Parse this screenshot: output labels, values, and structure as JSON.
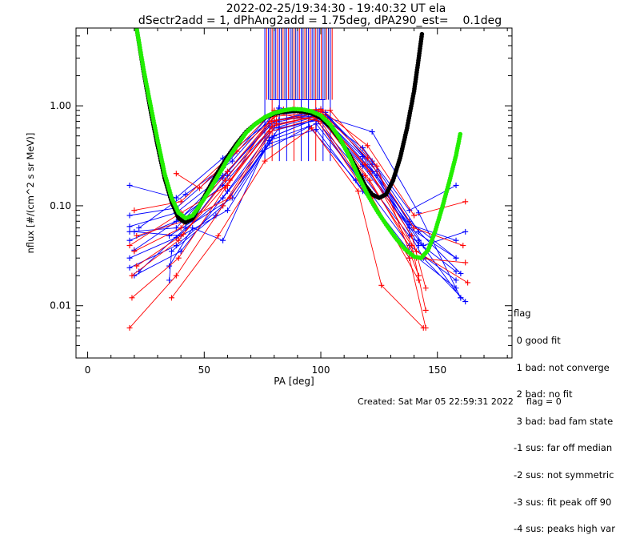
{
  "chart_data": {
    "type": "scatter",
    "title": "2022-02-25/19:34:30 - 19:40:32 UT ela",
    "subtitle": "dSectr2add = 1, dPhAng2add = 1.75deg, dPA290_est=    0.1deg",
    "xlabel": "PA [deg]",
    "ylabel": "nflux [#/(cm^2 s sr MeV)]",
    "xlim": [
      -5,
      182
    ],
    "ylim": [
      0.003,
      6.0
    ],
    "yscale": "log",
    "xticks": [
      0,
      50,
      100,
      150
    ],
    "xtick_labels": [
      "0",
      "50",
      "100",
      "150"
    ],
    "yticks": [
      0.01,
      0.1,
      1.0
    ],
    "ytick_labels": [
      "0.01",
      "0.10",
      "1.00"
    ],
    "series": [
      {
        "color": "#0000ff",
        "style": "lines-plus",
        "lines": [
          [
            [
              18,
              0.062
            ],
            [
              38,
              0.085
            ],
            [
              58,
              0.2
            ],
            [
              78,
              0.62
            ],
            [
              98,
              0.8
            ],
            [
              118,
              0.25
            ],
            [
              138,
              0.06
            ],
            [
              158,
              0.03
            ]
          ],
          [
            [
              18,
              0.045
            ],
            [
              38,
              0.07
            ],
            [
              58,
              0.16
            ],
            [
              78,
              0.55
            ],
            [
              98,
              0.72
            ],
            [
              118,
              0.2
            ],
            [
              138,
              0.05
            ],
            [
              158,
              0.022
            ]
          ],
          [
            [
              18,
              0.03
            ],
            [
              38,
              0.048
            ],
            [
              58,
              0.12
            ],
            [
              78,
              0.45
            ],
            [
              98,
              0.66
            ],
            [
              118,
              0.17
            ],
            [
              138,
              0.04
            ],
            [
              158,
              0.018
            ]
          ],
          [
            [
              18,
              0.024
            ],
            [
              38,
              0.04
            ],
            [
              58,
              0.1
            ],
            [
              78,
              0.42
            ],
            [
              98,
              0.58
            ],
            [
              118,
              0.14
            ],
            [
              138,
              0.035
            ],
            [
              158,
              0.015
            ]
          ],
          [
            [
              18,
              0.16
            ],
            [
              38,
              0.12
            ],
            [
              58,
              0.3
            ],
            [
              78,
              0.7
            ],
            [
              98,
              0.86
            ],
            [
              118,
              0.38
            ],
            [
              138,
              0.09
            ],
            [
              158,
              0.16
            ]
          ],
          [
            [
              18,
              0.08
            ],
            [
              38,
              0.095
            ],
            [
              58,
              0.24
            ],
            [
              78,
              0.8
            ],
            [
              98,
              0.9
            ],
            [
              118,
              0.31
            ],
            [
              138,
              0.07
            ],
            [
              158,
              0.03
            ]
          ],
          [
            [
              18,
              0.055
            ],
            [
              38,
              0.06
            ],
            [
              58,
              0.19
            ],
            [
              78,
              0.66
            ],
            [
              98,
              0.84
            ],
            [
              118,
              0.26
            ],
            [
              138,
              0.065
            ],
            [
              158,
              0.045
            ]
          ],
          [
            [
              20,
              0.036
            ],
            [
              40,
              0.075
            ],
            [
              60,
              0.22
            ],
            [
              80,
              0.7
            ],
            [
              100,
              0.93
            ],
            [
              122,
              0.28
            ],
            [
              142,
              0.055
            ],
            [
              160,
              0.021
            ]
          ],
          [
            [
              20,
              0.055
            ],
            [
              40,
              0.05
            ],
            [
              60,
              0.09
            ],
            [
              80,
              0.5
            ],
            [
              100,
              0.78
            ],
            [
              122,
              0.22
            ],
            [
              142,
              0.045
            ],
            [
              160,
              0.012
            ]
          ],
          [
            [
              20,
              0.02
            ],
            [
              40,
              0.035
            ],
            [
              60,
              0.14
            ],
            [
              80,
              0.6
            ],
            [
              100,
              0.8
            ],
            [
              122,
              0.55
            ],
            [
              142,
              0.085
            ],
            [
              160,
              0.012
            ]
          ],
          [
            [
              22,
              0.06
            ],
            [
              42,
              0.13
            ],
            [
              62,
              0.28
            ],
            [
              82,
              0.95
            ],
            [
              102,
              0.86
            ],
            [
              124,
              0.22
            ],
            [
              144,
              0.04
            ],
            [
              162,
              0.055
            ]
          ],
          [
            [
              22,
              0.022
            ],
            [
              42,
              0.06
            ],
            [
              62,
              0.12
            ],
            [
              82,
              0.6
            ],
            [
              102,
              0.74
            ],
            [
              124,
              0.2
            ],
            [
              144,
              0.03
            ],
            [
              162,
              0.011
            ]
          ],
          [
            [
              35,
              0.018
            ],
            [
              36,
              0.035
            ],
            [
              55,
              0.08
            ],
            [
              75,
              0.35
            ],
            [
              95,
              0.62
            ],
            [
              115,
              0.18
            ],
            [
              135,
              0.04
            ]
          ],
          [
            [
              35,
              0.025
            ],
            [
              45,
              0.06
            ],
            [
              58,
              0.045
            ],
            [
              78,
              0.48
            ],
            [
              98,
              0.74
            ],
            [
              118,
              0.16
            ],
            [
              138,
              0.03
            ]
          ],
          [
            [
              35,
              0.05
            ],
            [
              45,
              0.07
            ],
            [
              60,
              0.2
            ],
            [
              82,
              0.72
            ],
            [
              102,
              0.82
            ],
            [
              122,
              0.26
            ],
            [
              142,
              0.04
            ]
          ]
        ]
      },
      {
        "color": "#ff0000",
        "style": "lines-plus",
        "lines": [
          [
            [
              18,
              0.006
            ],
            [
              38,
              0.02
            ],
            [
              58,
              0.1
            ],
            [
              78,
              0.55
            ],
            [
              98,
              0.75
            ],
            [
              118,
              0.15
            ],
            [
              138,
              0.03
            ],
            [
              145,
              0.006
            ]
          ],
          [
            [
              19,
              0.012
            ],
            [
              39,
              0.03
            ],
            [
              59,
              0.15
            ],
            [
              79,
              0.62
            ],
            [
              99,
              0.8
            ],
            [
              119,
              0.2
            ],
            [
              139,
              0.04
            ],
            [
              145,
              0.009
            ]
          ],
          [
            [
              19,
              0.02
            ],
            [
              39,
              0.045
            ],
            [
              59,
              0.18
            ],
            [
              79,
              0.7
            ],
            [
              99,
              0.85
            ],
            [
              119,
              0.26
            ],
            [
              139,
              0.05
            ],
            [
              145,
              0.015
            ]
          ],
          [
            [
              20,
              0.035
            ],
            [
              40,
              0.06
            ],
            [
              60,
              0.22
            ],
            [
              80,
              0.78
            ],
            [
              100,
              0.88
            ],
            [
              120,
              0.3
            ],
            [
              140,
              0.06
            ],
            [
              161,
              0.04
            ]
          ],
          [
            [
              20,
              0.09
            ],
            [
              40,
              0.11
            ],
            [
              60,
              0.3
            ],
            [
              80,
              0.9
            ],
            [
              100,
              0.92
            ],
            [
              120,
              0.4
            ],
            [
              140,
              0.08
            ],
            [
              162,
              0.11
            ]
          ],
          [
            [
              21,
              0.05
            ],
            [
              41,
              0.07
            ],
            [
              61,
              0.12
            ],
            [
              81,
              0.66
            ],
            [
              101,
              0.8
            ],
            [
              121,
              0.18
            ],
            [
              141,
              0.03
            ],
            [
              162,
              0.027
            ]
          ],
          [
            [
              21,
              0.025
            ],
            [
              41,
              0.052
            ],
            [
              61,
              0.18
            ],
            [
              81,
              0.72
            ],
            [
              101,
              0.78
            ],
            [
              121,
              0.22
            ],
            [
              141,
              0.035
            ],
            [
              163,
              0.017
            ]
          ],
          [
            [
              36,
              0.012
            ],
            [
              56,
              0.05
            ],
            [
              76,
              0.28
            ],
            [
              96,
              0.6
            ],
            [
              116,
              0.14
            ],
            [
              126,
              0.016
            ],
            [
              144,
              0.006
            ]
          ],
          [
            [
              38,
              0.21
            ],
            [
              48,
              0.15
            ],
            [
              64,
              0.35
            ],
            [
              84,
              0.92
            ],
            [
              104,
              0.9
            ],
            [
              124,
              0.25
            ],
            [
              142,
              0.02
            ]
          ],
          [
            [
              18,
              0.04
            ],
            [
              40,
              0.085
            ],
            [
              60,
              0.16
            ],
            [
              80,
              0.85
            ],
            [
              100,
              0.7
            ],
            [
              122,
              0.12
            ],
            [
              142,
              0.018
            ]
          ]
        ]
      },
      {
        "name": "",
        "color": "#000000",
        "style": "dots",
        "points": [
          [
            21,
            6.0
          ],
          [
            24,
            2.2
          ],
          [
            27,
            0.9
          ],
          [
            30,
            0.4
          ],
          [
            33,
            0.19
          ],
          [
            36,
            0.11
          ],
          [
            39,
            0.075
          ],
          [
            42,
            0.068
          ],
          [
            45,
            0.075
          ],
          [
            48,
            0.1
          ],
          [
            52,
            0.15
          ],
          [
            56,
            0.22
          ],
          [
            60,
            0.31
          ],
          [
            64,
            0.42
          ],
          [
            68,
            0.55
          ],
          [
            72,
            0.66
          ],
          [
            76,
            0.76
          ],
          [
            80,
            0.83
          ],
          [
            84,
            0.87
          ],
          [
            88,
            0.89
          ],
          [
            92,
            0.88
          ],
          [
            96,
            0.84
          ],
          [
            100,
            0.76
          ],
          [
            104,
            0.62
          ],
          [
            108,
            0.47
          ],
          [
            112,
            0.33
          ],
          [
            116,
            0.22
          ],
          [
            119,
            0.16
          ],
          [
            122,
            0.13
          ],
          [
            125,
            0.12
          ],
          [
            128,
            0.13
          ],
          [
            131,
            0.18
          ],
          [
            134,
            0.3
          ],
          [
            137,
            0.6
          ],
          [
            140,
            1.4
          ],
          [
            142,
            3.0
          ],
          [
            143.5,
            5.5
          ]
        ]
      },
      {
        "name": "",
        "color": "#22ee00",
        "style": "dots",
        "points": [
          [
            21,
            6.0
          ],
          [
            24,
            2.3
          ],
          [
            27,
            1.0
          ],
          [
            30,
            0.45
          ],
          [
            33,
            0.21
          ],
          [
            36,
            0.12
          ],
          [
            39,
            0.085
          ],
          [
            42,
            0.075
          ],
          [
            45,
            0.08
          ],
          [
            48,
            0.1
          ],
          [
            52,
            0.14
          ],
          [
            56,
            0.2
          ],
          [
            60,
            0.29
          ],
          [
            64,
            0.4
          ],
          [
            68,
            0.54
          ],
          [
            72,
            0.66
          ],
          [
            76,
            0.77
          ],
          [
            80,
            0.85
          ],
          [
            84,
            0.9
          ],
          [
            88,
            0.93
          ],
          [
            92,
            0.92
          ],
          [
            96,
            0.88
          ],
          [
            100,
            0.8
          ],
          [
            104,
            0.65
          ],
          [
            108,
            0.48
          ],
          [
            112,
            0.32
          ],
          [
            116,
            0.2
          ],
          [
            120,
            0.13
          ],
          [
            124,
            0.09
          ],
          [
            128,
            0.065
          ],
          [
            132,
            0.048
          ],
          [
            136,
            0.037
          ],
          [
            140,
            0.031
          ],
          [
            143,
            0.03
          ],
          [
            146,
            0.036
          ],
          [
            149,
            0.055
          ],
          [
            152,
            0.095
          ],
          [
            155,
            0.17
          ],
          [
            158,
            0.32
          ],
          [
            160,
            0.55
          ]
        ]
      }
    ]
  },
  "legend": {
    "title": "flag",
    "items": [
      " 0 good fit",
      " 1 bad: not converge",
      " 2 bad: no fit",
      " 3 bad: bad fam state",
      "-1 sus: far off median",
      "-2 sus: not symmetric",
      "-3 sus: fit peak off 90",
      "-4 sus: peaks high var"
    ]
  },
  "footer": {
    "created": "Created: Sat Mar 05 22:59:31 2022",
    "flag": "flag = 0"
  }
}
